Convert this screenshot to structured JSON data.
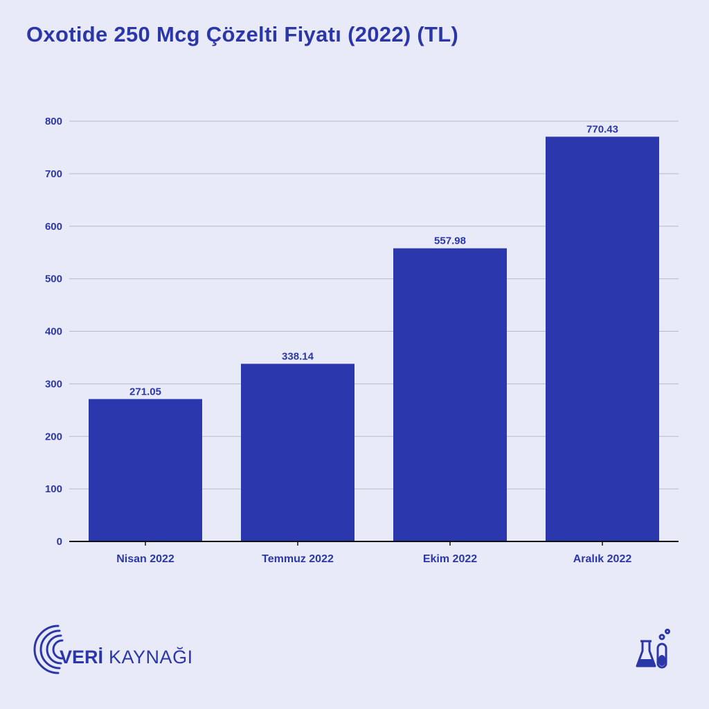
{
  "title": "Oxotide 250 Mcg Çözelti Fiyatı (2022) (TL)",
  "brand": {
    "bold": "VERİ",
    "light": " KAYNAĞI"
  },
  "colors": {
    "bar": "#2b37ac",
    "text": "#2b37a8",
    "background": "#e9eaf7",
    "grid": "#b9bac6"
  },
  "chart_data": {
    "type": "bar",
    "title": "Oxotide 250 Mcg Çözelti Fiyatı (2022) (TL)",
    "categories": [
      "Nisan 2022",
      "Temmuz 2022",
      "Ekim 2022",
      "Aralık 2022"
    ],
    "values": [
      271.05,
      338.14,
      557.98,
      770.43
    ],
    "value_labels": [
      "271.05",
      "338.14",
      "557.98",
      "770.43"
    ],
    "yticks": [
      0,
      100,
      200,
      300,
      400,
      500,
      600,
      700,
      800
    ],
    "ylim": [
      0,
      800
    ],
    "xlabel": "",
    "ylabel": "",
    "grid": true
  }
}
